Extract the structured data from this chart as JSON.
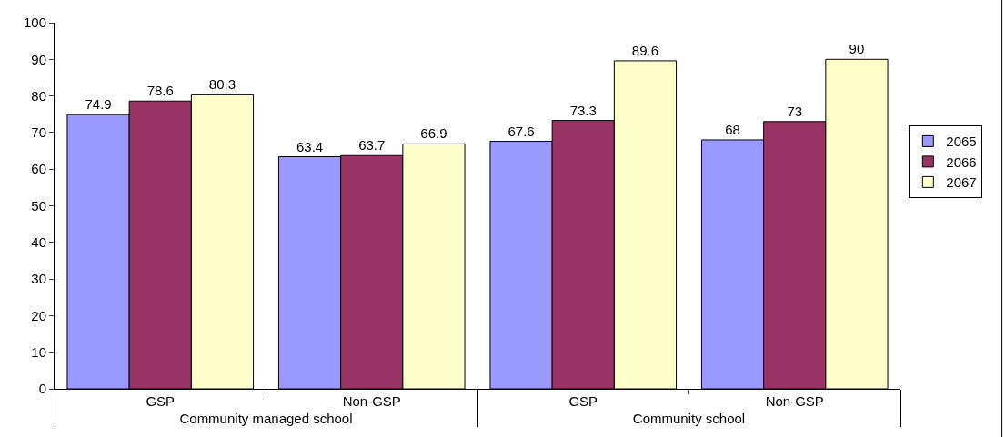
{
  "chart_data": {
    "type": "bar",
    "categories": [
      "GSP",
      "Non-GSP",
      "GSP",
      "Non-GSP"
    ],
    "annotations": [
      "Community managed school",
      "Community school"
    ],
    "series": [
      {
        "name": "2065",
        "color": "#9999ff",
        "values": [
          74.9,
          63.4,
          67.6,
          68
        ]
      },
      {
        "name": "2066",
        "color": "#993366",
        "values": [
          78.6,
          63.7,
          73.3,
          73
        ]
      },
      {
        "name": "2067",
        "color": "#ffffcc",
        "values": [
          80.3,
          66.9,
          89.6,
          90
        ]
      }
    ],
    "ylim": [
      0,
      100
    ],
    "yticks": [
      0,
      10,
      20,
      30,
      40,
      50,
      60,
      70,
      80,
      90,
      100
    ],
    "data_labels": true,
    "grid": false,
    "legend": "right"
  }
}
